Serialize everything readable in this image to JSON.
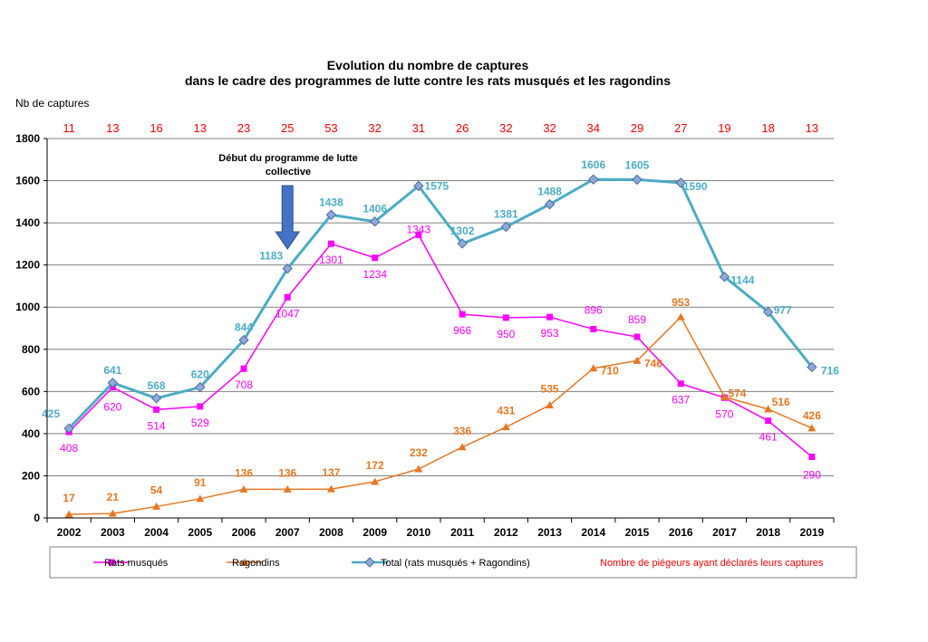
{
  "chart_data": {
    "type": "line",
    "title_line1": "Evolution du nombre de captures",
    "title_line2": "dans le cadre des programmes de lutte contre les rats musqués et les ragondins",
    "ylabel": "Nb de captures",
    "ylim": [
      0,
      1800
    ],
    "yticks": [
      0,
      200,
      400,
      600,
      800,
      1000,
      1200,
      1400,
      1600,
      1800
    ],
    "grid": true,
    "categories": [
      "2002",
      "2003",
      "2004",
      "2005",
      "2006",
      "2007",
      "2008",
      "2009",
      "2010",
      "2011",
      "2012",
      "2013",
      "2014",
      "2015",
      "2016",
      "2017",
      "2018",
      "2019"
    ],
    "trapper_counts": [
      11,
      13,
      16,
      13,
      23,
      25,
      53,
      32,
      31,
      26,
      32,
      32,
      34,
      29,
      27,
      19,
      18,
      13
    ],
    "series": [
      {
        "name": "Rats musqués",
        "color": "#ff00ff",
        "marker": "square",
        "values": [
          408,
          620,
          514,
          529,
          708,
          1047,
          1301,
          1234,
          1343,
          966,
          950,
          953,
          896,
          859,
          637,
          570,
          461,
          290
        ]
      },
      {
        "name": "Ragondins",
        "color": "#e87722",
        "marker": "triangle",
        "values": [
          17,
          21,
          54,
          91,
          136,
          136,
          137,
          172,
          232,
          336,
          431,
          535,
          710,
          746,
          953,
          574,
          516,
          426
        ]
      },
      {
        "name": "Total (rats musqués + Ragondins)",
        "color": "#4bacc6",
        "marker": "diamond",
        "values": [
          425,
          641,
          568,
          620,
          844,
          1183,
          1438,
          1406,
          1575,
          1302,
          1381,
          1488,
          1606,
          1605,
          1590,
          1144,
          977,
          716
        ]
      }
    ],
    "annotation": {
      "line1": "Début du programme de lutte",
      "line2": "collective",
      "year": "2007"
    },
    "legend": {
      "placement": "bottom",
      "trapper_label": "Nombre de piégeurs ayant déclarés leurs captures",
      "trapper_color": "#ff0000"
    }
  }
}
